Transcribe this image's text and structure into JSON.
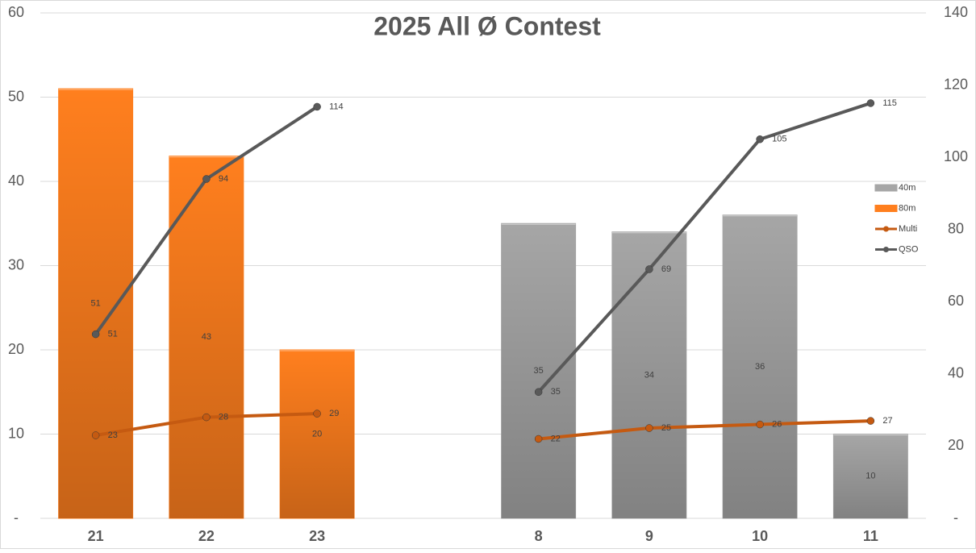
{
  "chart_data": {
    "type": "bar",
    "title": "2025 All Ø Contest",
    "categories": [
      "21",
      "22",
      "23",
      null,
      "8",
      "9",
      "10",
      "11"
    ],
    "series": [
      {
        "name": "40m",
        "type": "bar",
        "color": "#a6a6a6",
        "values": [
          null,
          null,
          null,
          null,
          35,
          34,
          36,
          10
        ]
      },
      {
        "name": "80m",
        "type": "bar",
        "color": "#ff7f1e",
        "values": [
          51,
          43,
          20,
          null,
          null,
          null,
          null,
          null
        ]
      },
      {
        "name": "Multi",
        "type": "line",
        "axis": "y2",
        "color": "#c55a11",
        "values": [
          23,
          28,
          29,
          null,
          22,
          25,
          26,
          27
        ]
      },
      {
        "name": "QSO",
        "type": "line",
        "axis": "y2",
        "color": "#595959",
        "values": [
          51,
          94,
          114,
          null,
          35,
          69,
          105,
          115
        ]
      }
    ],
    "ylim": [
      0,
      60
    ],
    "yticks": [
      {
        "value": 0,
        "label": "-"
      },
      10,
      20,
      30,
      40,
      50,
      60
    ],
    "y2lim": [
      0,
      140
    ],
    "y2ticks": [
      {
        "value": 0,
        "label": "-"
      },
      20,
      40,
      60,
      80,
      100,
      120,
      140
    ],
    "grid": true,
    "legend": "right"
  }
}
